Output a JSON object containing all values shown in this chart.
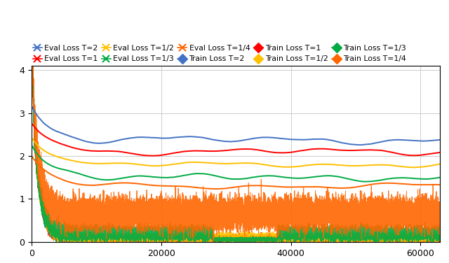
{
  "colors": {
    "T2": "#4472C4",
    "T1": "#FF0000",
    "T1_2": "#FFC000",
    "T1_3": "#00AA44",
    "T1_4": "#FF6600"
  },
  "n_steps": 63000,
  "ylim": [
    0,
    4.1
  ],
  "xlim": [
    0,
    63000
  ],
  "xticks": [
    0,
    20000,
    40000,
    60000
  ],
  "yticks": [
    0,
    1,
    2,
    3,
    4
  ],
  "eval_levels": {
    "T2": 2.3,
    "T1": 2.1,
    "T1_2": 1.8,
    "T1_3": 1.5,
    "T1_4": 1.3
  },
  "train_levels": {
    "T2": 0.05,
    "T1": 0.07,
    "T1_2": 0.1,
    "T1_3": 0.2,
    "T1_4": 0.65
  }
}
